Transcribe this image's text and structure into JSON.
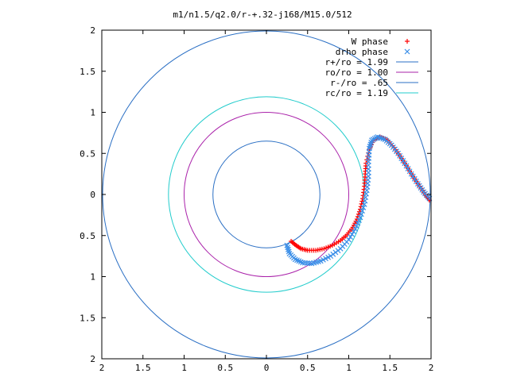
{
  "chart_data": {
    "type": "scatter",
    "title": "m1/n1.5/q2.0/r-+.32-j168/M15.0/512",
    "xlabel": "",
    "ylabel": "",
    "xlim": [
      -2,
      2
    ],
    "ylim": [
      -2,
      2
    ],
    "grid": false,
    "legend_position": "top-right",
    "x_tick_labels": [
      "2",
      "1.5",
      "1",
      "0.5",
      "0",
      "0.5",
      "1",
      "1.5",
      "2"
    ],
    "y_tick_labels": [
      "2",
      "1.5",
      "1",
      "0.5",
      "0",
      "0.5",
      "1",
      "1.5",
      "2"
    ],
    "series": [
      {
        "name": "W phase",
        "kind": "points",
        "marker": "plus",
        "color": "#ff0000",
        "points": [
          [
            0.3,
            -0.57
          ],
          [
            0.36,
            -0.62
          ],
          [
            0.42,
            -0.66
          ],
          [
            0.5,
            -0.68
          ],
          [
            0.6,
            -0.68
          ],
          [
            0.7,
            -0.66
          ],
          [
            0.8,
            -0.62
          ],
          [
            0.9,
            -0.56
          ],
          [
            0.98,
            -0.49
          ],
          [
            1.05,
            -0.4
          ],
          [
            1.1,
            -0.3
          ],
          [
            1.14,
            -0.18
          ],
          [
            1.17,
            -0.05
          ],
          [
            1.19,
            0.1
          ],
          [
            1.2,
            0.25
          ],
          [
            1.21,
            0.38
          ],
          [
            1.25,
            0.55
          ],
          [
            1.3,
            0.66
          ],
          [
            1.38,
            0.7
          ],
          [
            1.47,
            0.66
          ],
          [
            1.55,
            0.57
          ],
          [
            1.62,
            0.47
          ],
          [
            1.7,
            0.35
          ],
          [
            1.78,
            0.22
          ],
          [
            1.86,
            0.1
          ],
          [
            1.93,
            0.0
          ],
          [
            1.98,
            -0.07
          ]
        ]
      },
      {
        "name": "drho phase",
        "kind": "points",
        "marker": "cross",
        "color": "#3a8ee8",
        "points": [
          [
            0.25,
            -0.62
          ],
          [
            0.28,
            -0.72
          ],
          [
            0.35,
            -0.79
          ],
          [
            0.44,
            -0.83
          ],
          [
            0.55,
            -0.84
          ],
          [
            0.66,
            -0.81
          ],
          [
            0.78,
            -0.75
          ],
          [
            0.9,
            -0.66
          ],
          [
            1.0,
            -0.55
          ],
          [
            1.08,
            -0.42
          ],
          [
            1.14,
            -0.28
          ],
          [
            1.19,
            -0.12
          ],
          [
            1.22,
            0.05
          ],
          [
            1.24,
            0.22
          ],
          [
            1.24,
            0.4
          ],
          [
            1.25,
            0.56
          ],
          [
            1.28,
            0.66
          ],
          [
            1.35,
            0.7
          ],
          [
            1.44,
            0.67
          ],
          [
            1.52,
            0.6
          ],
          [
            1.6,
            0.5
          ],
          [
            1.68,
            0.38
          ],
          [
            1.76,
            0.25
          ],
          [
            1.84,
            0.13
          ],
          [
            1.91,
            0.03
          ],
          [
            1.98,
            -0.05
          ]
        ]
      },
      {
        "name": "r+/ro = 1.99",
        "kind": "circle",
        "radius": 1.99,
        "color": "#2a6fc4"
      },
      {
        "name": "ro/ro = 1.00",
        "kind": "circle",
        "radius": 1.0,
        "color": "#aa22aa"
      },
      {
        "name": "r-/ro = .65",
        "kind": "circle",
        "radius": 0.65,
        "color": "#2a6fc4"
      },
      {
        "name": "rc/ro = 1.19",
        "kind": "circle",
        "radius": 1.19,
        "color": "#22cccc"
      }
    ]
  }
}
